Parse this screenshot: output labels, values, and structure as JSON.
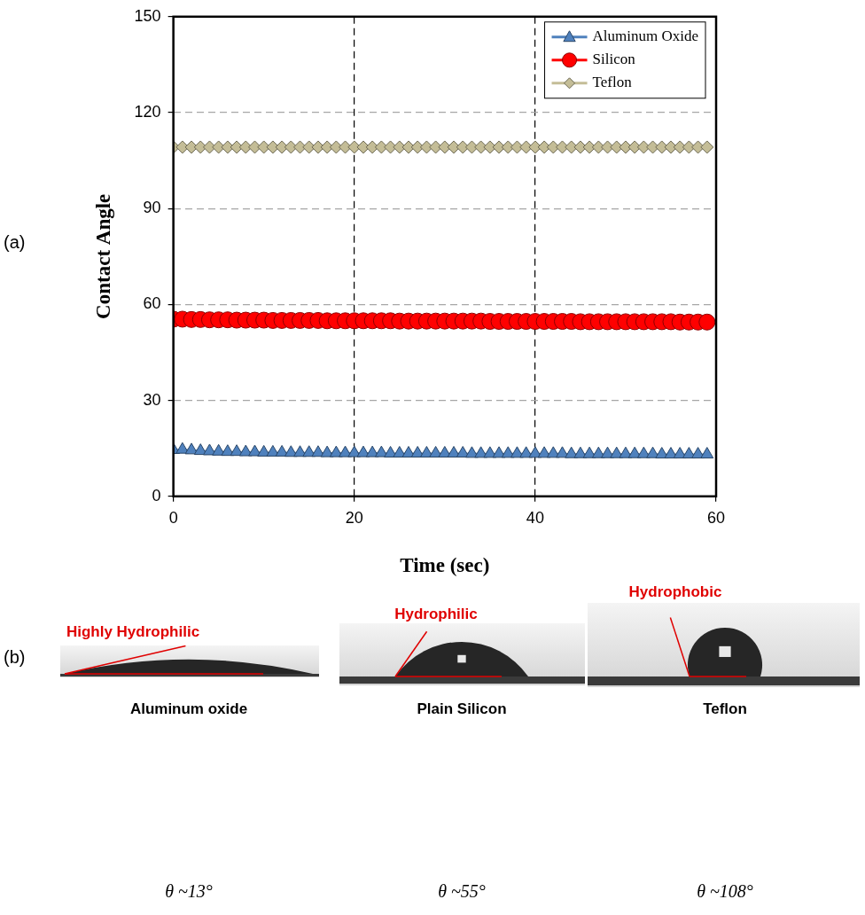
{
  "chart_data": {
    "type": "line",
    "x_label": "Time (sec)",
    "y_label": "Contact Angle",
    "x": [
      0,
      1,
      2,
      3,
      4,
      5,
      6,
      7,
      8,
      9,
      10,
      11,
      12,
      13,
      14,
      15,
      16,
      17,
      18,
      19,
      20,
      21,
      22,
      23,
      24,
      25,
      26,
      27,
      28,
      29,
      30,
      31,
      32,
      33,
      34,
      35,
      36,
      37,
      38,
      39,
      40,
      41,
      42,
      43,
      44,
      45,
      46,
      47,
      48,
      49,
      50,
      51,
      52,
      53,
      54,
      55,
      56,
      57,
      58,
      59
    ],
    "series": [
      {
        "name": "Aluminum Oxide",
        "color": "#4f81bd",
        "marker": "triangle",
        "line_style": "solid",
        "values": [
          14.5,
          14.6,
          14.4,
          14.2,
          14.1,
          14.0,
          13.9,
          13.9,
          13.8,
          13.8,
          13.7,
          13.7,
          13.7,
          13.6,
          13.6,
          13.6,
          13.6,
          13.5,
          13.5,
          13.5,
          13.5,
          13.5,
          13.5,
          13.5,
          13.4,
          13.4,
          13.4,
          13.4,
          13.4,
          13.4,
          13.4,
          13.4,
          13.4,
          13.3,
          13.3,
          13.3,
          13.3,
          13.3,
          13.3,
          13.3,
          13.3,
          13.3,
          13.3,
          13.3,
          13.2,
          13.2,
          13.2,
          13.2,
          13.2,
          13.2,
          13.2,
          13.2,
          13.2,
          13.2,
          13.1,
          13.1,
          13.1,
          13.1,
          13.1,
          13.1
        ]
      },
      {
        "name": "Silicon",
        "color": "#ff0000",
        "marker": "circle",
        "line_style": "solid",
        "values": [
          55.4,
          55.4,
          55.3,
          55.3,
          55.2,
          55.2,
          55.2,
          55.1,
          55.1,
          55.1,
          55.1,
          55.0,
          55.0,
          55.0,
          55.0,
          55.0,
          55.0,
          54.9,
          54.9,
          54.9,
          54.9,
          54.9,
          54.9,
          54.9,
          54.9,
          54.8,
          54.8,
          54.8,
          54.8,
          54.8,
          54.8,
          54.8,
          54.8,
          54.8,
          54.8,
          54.7,
          54.7,
          54.7,
          54.7,
          54.7,
          54.7,
          54.7,
          54.7,
          54.7,
          54.7,
          54.6,
          54.6,
          54.6,
          54.6,
          54.6,
          54.6,
          54.6,
          54.6,
          54.6,
          54.6,
          54.6,
          54.5,
          54.5,
          54.5,
          54.5
        ]
      },
      {
        "name": "Teflon",
        "color": "#c4bd97",
        "marker": "diamond",
        "line_style": "solid",
        "values": [
          109.2,
          109.2,
          109.2,
          109.2,
          109.2,
          109.2,
          109.2,
          109.2,
          109.2,
          109.2,
          109.2,
          109.2,
          109.2,
          109.2,
          109.2,
          109.2,
          109.2,
          109.2,
          109.2,
          109.2,
          109.2,
          109.2,
          109.2,
          109.2,
          109.2,
          109.2,
          109.2,
          109.2,
          109.2,
          109.2,
          109.2,
          109.2,
          109.2,
          109.2,
          109.2,
          109.2,
          109.2,
          109.2,
          109.2,
          109.2,
          109.2,
          109.2,
          109.2,
          109.2,
          109.2,
          109.2,
          109.2,
          109.2,
          109.2,
          109.2,
          109.2,
          109.2,
          109.2,
          109.2,
          109.2,
          109.2,
          109.2,
          109.2,
          109.2,
          109.2
        ]
      }
    ],
    "xlim": [
      0,
      60
    ],
    "xticks": [
      0,
      20,
      40,
      60
    ],
    "ylim": [
      0,
      150
    ],
    "yticks": [
      0,
      30,
      60,
      90,
      120,
      150
    ],
    "grid": true,
    "legend": "upper right"
  },
  "figure": {
    "panel_a_label": "(a)",
    "panel_b_label": "(b)",
    "droplets": [
      {
        "substrate": "Aluminum oxide",
        "wetting": "Highly Hydrophilic",
        "angle": 13,
        "angle_label": "θ ~13°"
      },
      {
        "substrate": "Plain Silicon",
        "wetting": "Hydrophilic",
        "angle": 55,
        "angle_label": "θ ~55°"
      },
      {
        "substrate": "Teflon",
        "wetting": "Hydrophobic",
        "angle": 108,
        "angle_label": "θ ~108°"
      }
    ]
  }
}
